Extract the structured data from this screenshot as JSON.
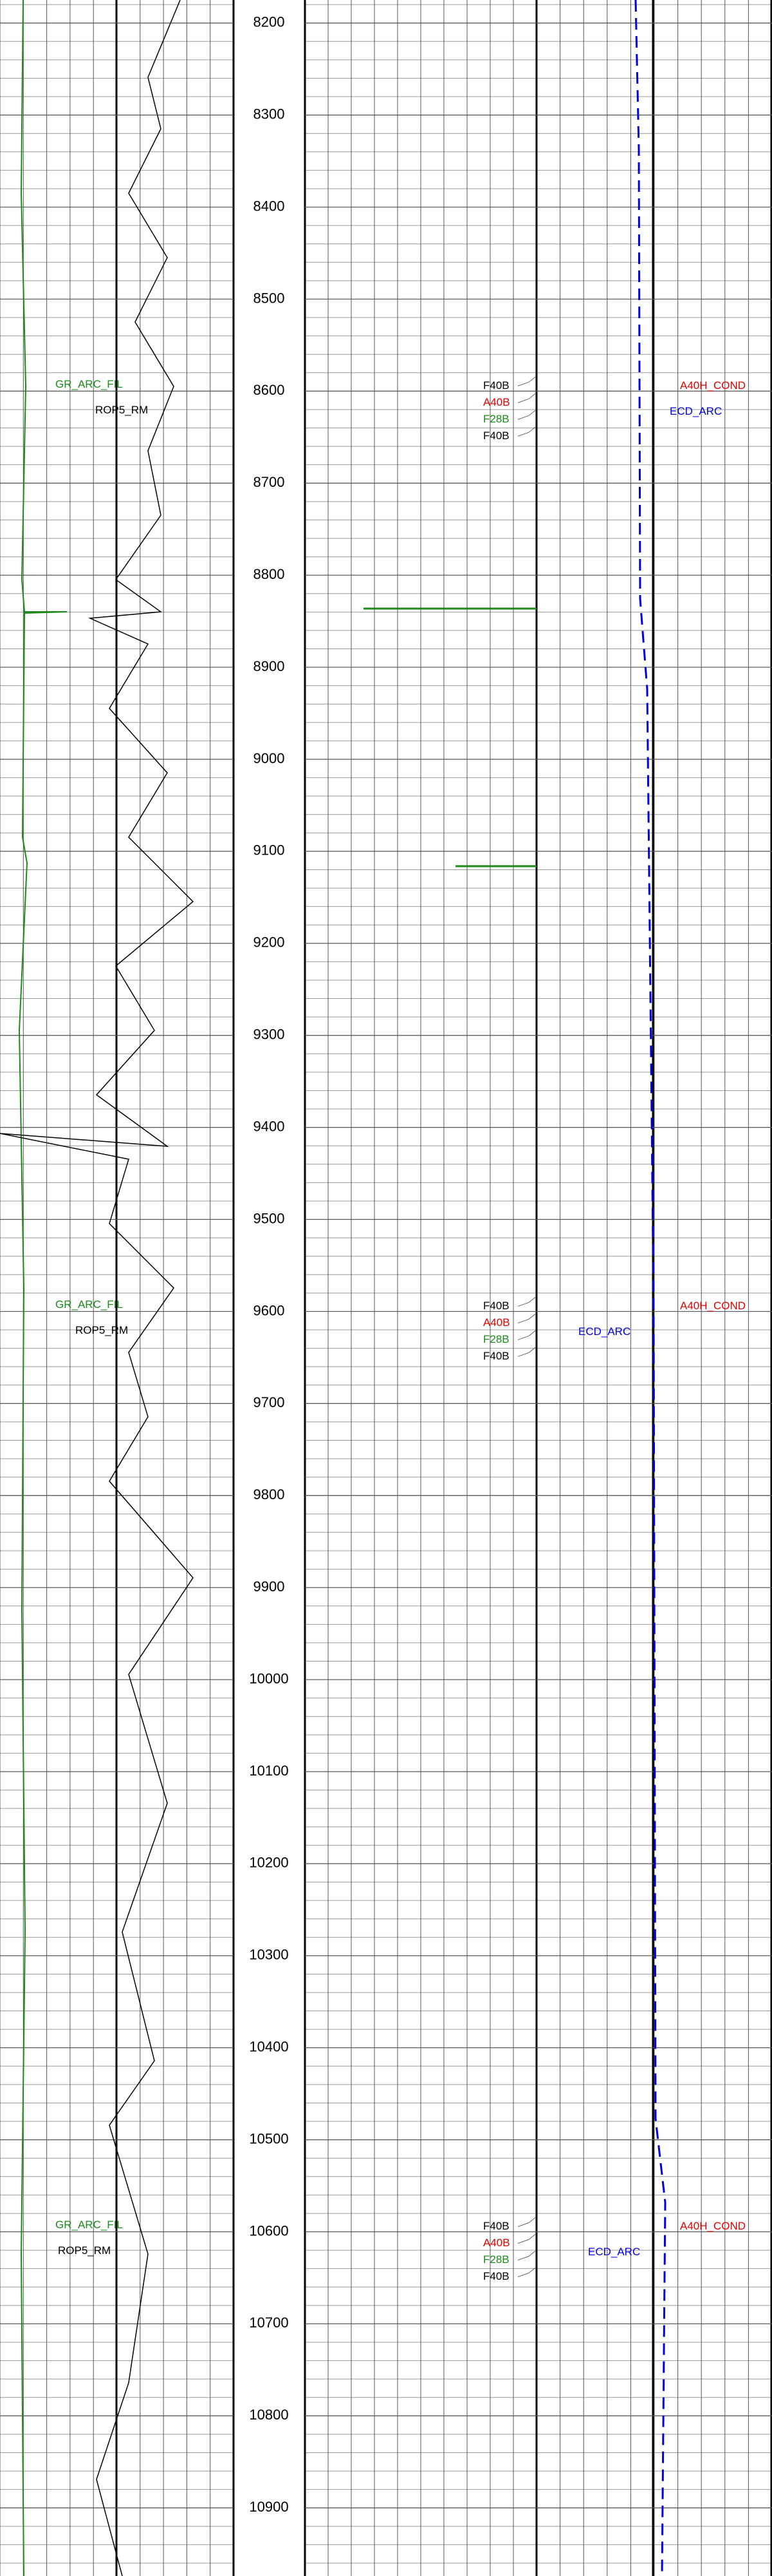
{
  "chart_data": {
    "type": "well-log",
    "ylim": [
      8175,
      10974
    ],
    "yticks": [
      8200,
      8300,
      8400,
      8500,
      8600,
      8700,
      8800,
      8900,
      9000,
      9100,
      9200,
      9300,
      9400,
      9500,
      9600,
      9700,
      9800,
      9900,
      10000,
      10100,
      10200,
      10300,
      10400,
      10500,
      10600,
      10700,
      10800,
      10900
    ],
    "grid": true,
    "annotation_groups": [
      {
        "gr": "GR_ARC_FIL",
        "rop": "ROP5_RM",
        "formations": [
          {
            "text": "F40B",
            "color": "#000000"
          },
          {
            "text": "A40B",
            "color": "#e00000"
          },
          {
            "text": "F28B",
            "color": "#1a8a1a"
          },
          {
            "text": "F40B",
            "color": "#000000"
          }
        ],
        "ecd": "ECD_ARC",
        "cond": "A40H_COND"
      },
      {
        "gr": "GR_ARC_FIL",
        "rop": "ROP5_RM",
        "formations": [
          {
            "text": "F40B",
            "color": "#000000"
          },
          {
            "text": "A40B",
            "color": "#e00000"
          },
          {
            "text": "F28B",
            "color": "#1a8a1a"
          },
          {
            "text": "F40B",
            "color": "#000000"
          }
        ],
        "ecd": "ECD_ARC",
        "cond": "A40H_COND"
      },
      {
        "gr": "GR_ARC_FIL",
        "rop": "ROP5_RM",
        "formations": [
          {
            "text": "F40B",
            "color": "#000000"
          },
          {
            "text": "A40B",
            "color": "#e00000"
          },
          {
            "text": "F28B",
            "color": "#1a8a1a"
          },
          {
            "text": "F40B",
            "color": "#000000"
          }
        ],
        "ecd": "ECD_ARC",
        "cond": "A40H_COND"
      }
    ],
    "gr_color": "#1a8a1a",
    "rop_color": "#000000",
    "ecd_color": "#0000dd",
    "cond_color": "#e00000"
  }
}
